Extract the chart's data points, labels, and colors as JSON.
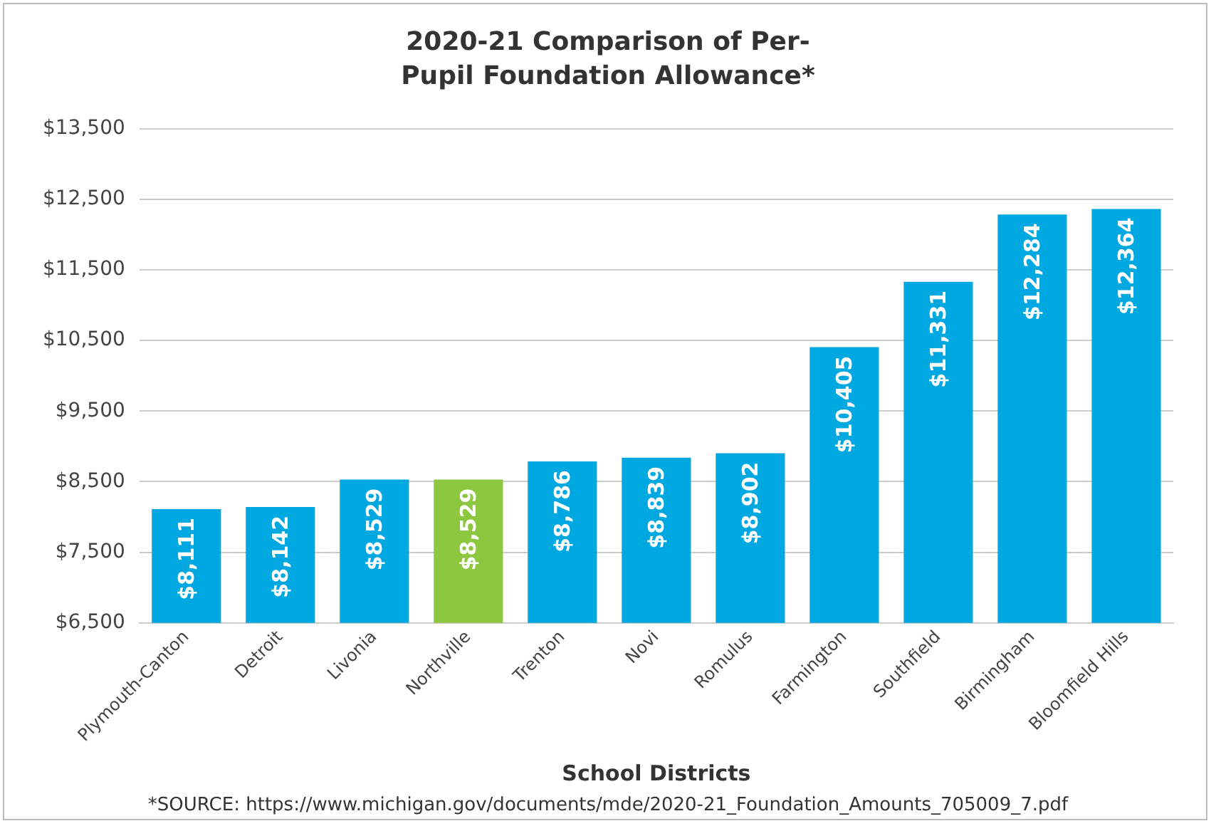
{
  "chart_data": {
    "type": "bar",
    "title": "2020-21 Comparison of Per-Pupil Foundation Allowance*",
    "xlabel": "School Districts",
    "categories": [
      "Plymouth-Canton",
      "Detroit",
      "Livonia",
      "Northville",
      "Trenton",
      "Novi",
      "Romulus",
      "Farmington",
      "Southfield",
      "Birmingham",
      "Bloomfield Hills"
    ],
    "values": [
      8111,
      8142,
      8529,
      8529,
      8786,
      8839,
      8902,
      10405,
      11331,
      12284,
      12364
    ],
    "value_labels": [
      "$8,111",
      "$8,142",
      "$8,529",
      "$8,529",
      "$8,786",
      "$8,839",
      "$8,902",
      "$10,405",
      "$11,331",
      "$12,284",
      "$12,364"
    ],
    "colors": [
      "#00a8e1",
      "#00a8e1",
      "#00a8e1",
      "#8dc63f",
      "#00a8e1",
      "#00a8e1",
      "#00a8e1",
      "#00a8e1",
      "#00a8e1",
      "#00a8e1",
      "#00a8e1"
    ],
    "ylim": [
      6500,
      13500
    ],
    "yticks": [
      {
        "value": 6500,
        "label": "$6,500"
      },
      {
        "value": 7500,
        "label": "$7,500"
      },
      {
        "value": 8500,
        "label": "$8,500"
      },
      {
        "value": 9500,
        "label": "$9,500"
      },
      {
        "value": 10500,
        "label": "$10,500"
      },
      {
        "value": 11500,
        "label": "$11,500"
      },
      {
        "value": 12500,
        "label": "$12,500"
      },
      {
        "value": 13500,
        "label": "$13,500"
      }
    ],
    "grid": "y",
    "legend": false,
    "annotations": [
      "*SOURCE: https://www.michigan.gov/documents/mde/2020-21_Foundation_Amounts_705009_7.pdf"
    ]
  }
}
